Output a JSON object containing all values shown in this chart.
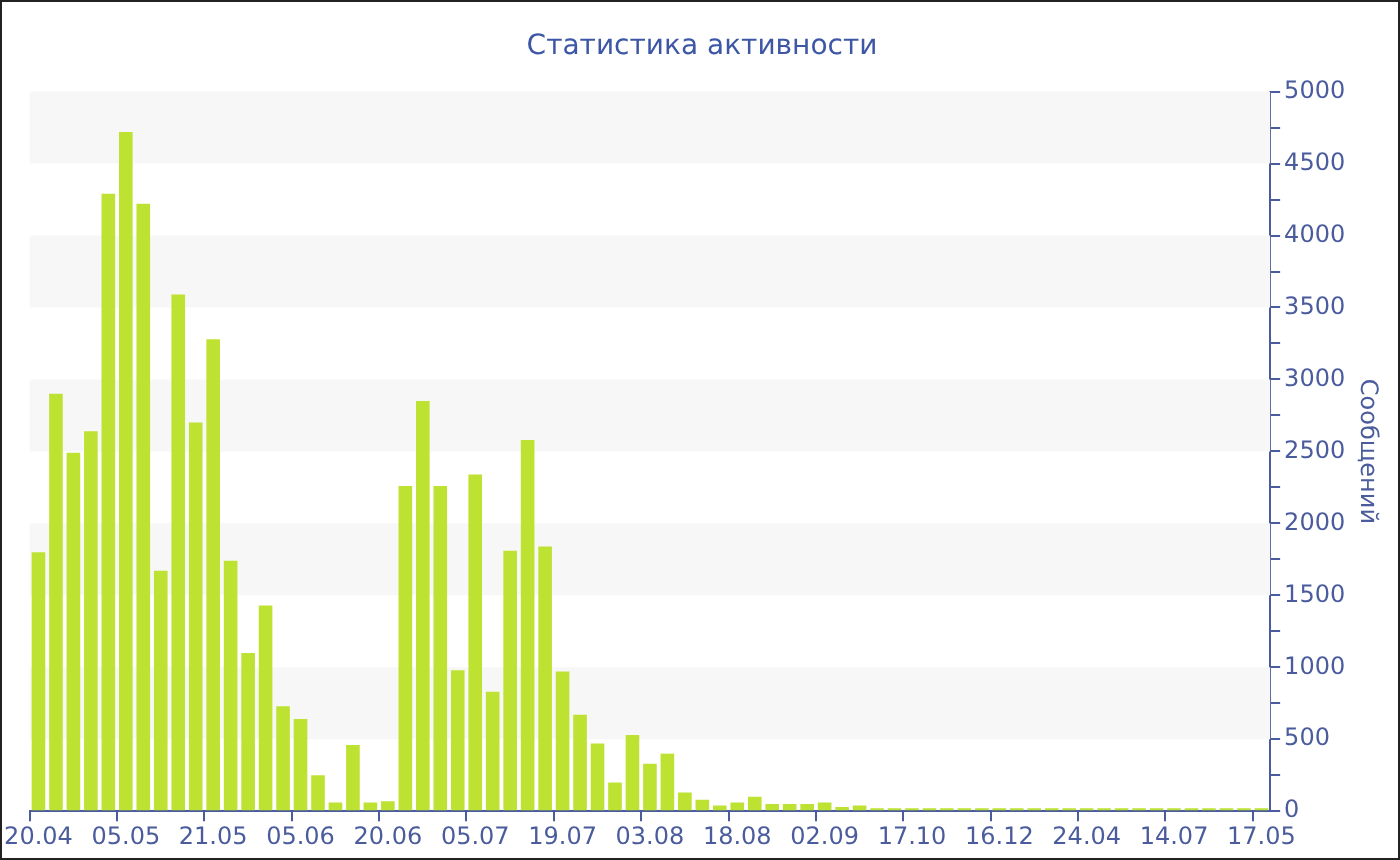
{
  "chart_data": {
    "type": "bar",
    "title": "Статистика активности",
    "ylabel": "Сообщений",
    "categories": [
      "20.04",
      null,
      null,
      null,
      null,
      "05.05",
      null,
      null,
      null,
      null,
      "21.05",
      null,
      null,
      null,
      null,
      "05.06",
      null,
      null,
      null,
      null,
      "20.06",
      null,
      null,
      null,
      null,
      "05.07",
      null,
      null,
      null,
      null,
      "19.07",
      null,
      null,
      null,
      null,
      "03.08",
      null,
      null,
      null,
      null,
      "18.08",
      null,
      null,
      null,
      null,
      "02.09",
      null,
      null,
      null,
      null,
      "17.10",
      null,
      null,
      null,
      null,
      "16.12",
      null,
      null,
      null,
      null,
      "24.04",
      null,
      null,
      null,
      null,
      "14.07",
      null,
      null,
      null,
      null,
      "17.05"
    ],
    "values": [
      1800,
      2900,
      2490,
      2640,
      4290,
      4720,
      4220,
      1670,
      3590,
      2700,
      3280,
      1740,
      1100,
      1430,
      730,
      640,
      250,
      60,
      460,
      60,
      70,
      2260,
      2850,
      2260,
      980,
      2340,
      830,
      1810,
      2580,
      1840,
      970,
      670,
      470,
      200,
      530,
      330,
      400,
      130,
      80,
      40,
      60,
      100,
      50,
      50,
      50,
      60,
      30,
      40,
      20,
      20,
      20,
      20,
      20,
      20,
      20,
      20,
      20,
      20,
      20,
      20,
      20,
      20,
      20,
      20,
      20,
      20,
      20,
      20,
      20,
      20,
      20
    ],
    "color": "#bde232",
    "ylim": [
      0,
      5000
    ],
    "yticks": [
      0,
      {
        "value": 250,
        "label": null
      },
      500,
      {
        "value": 750,
        "label": null
      },
      1000,
      {
        "value": 1250,
        "label": null
      },
      1500,
      {
        "value": 1750,
        "label": null
      },
      2000,
      {
        "value": 2250,
        "label": null
      },
      2500,
      {
        "value": 2750,
        "label": null
      },
      3000,
      {
        "value": 3250,
        "label": null
      },
      3500,
      {
        "value": 3750,
        "label": null
      },
      4000,
      {
        "value": 4250,
        "label": null
      },
      4500,
      {
        "value": 4750,
        "label": null
      },
      5000
    ],
    "bands": [
      {
        "axis": "y",
        "from": 500,
        "to": 1000,
        "color": "#f7f7f7"
      },
      {
        "axis": "y",
        "from": 1500,
        "to": 2000,
        "color": "#f7f7f7"
      },
      {
        "axis": "y",
        "from": 2500,
        "to": 3000,
        "color": "#f7f7f7"
      },
      {
        "axis": "y",
        "from": 3500,
        "to": 4000,
        "color": "#f7f7f7"
      },
      {
        "axis": "y",
        "from": 4500,
        "to": 5000,
        "color": "#f7f7f7"
      }
    ]
  }
}
